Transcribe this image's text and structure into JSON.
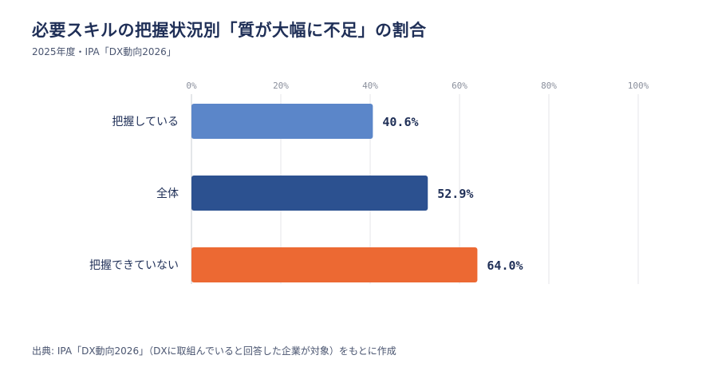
{
  "title": "必要スキルの把握状況別「質が大幅に不足」の割合",
  "subtitle": "2025年度・IPA「DX動向2026」",
  "source": "出典: IPA「DX動向2026」（DXに取組んでいると回答した企業が対象）をもとに作成",
  "chart_data": {
    "type": "bar",
    "orientation": "horizontal",
    "categories": [
      "把握している",
      "全体",
      "把握できていない"
    ],
    "values": [
      40.6,
      52.9,
      64.0
    ],
    "value_labels": [
      "40.6%",
      "52.9%",
      "64.0%"
    ],
    "colors": [
      "#5b86c9",
      "#2c5190",
      "#ec6933"
    ],
    "xlim": [
      0,
      100
    ],
    "xticks": [
      0,
      20,
      40,
      60,
      80,
      100
    ],
    "xtick_labels": [
      "0%",
      "20%",
      "40%",
      "60%",
      "80%",
      "100%"
    ],
    "grid": true,
    "legend": false
  }
}
